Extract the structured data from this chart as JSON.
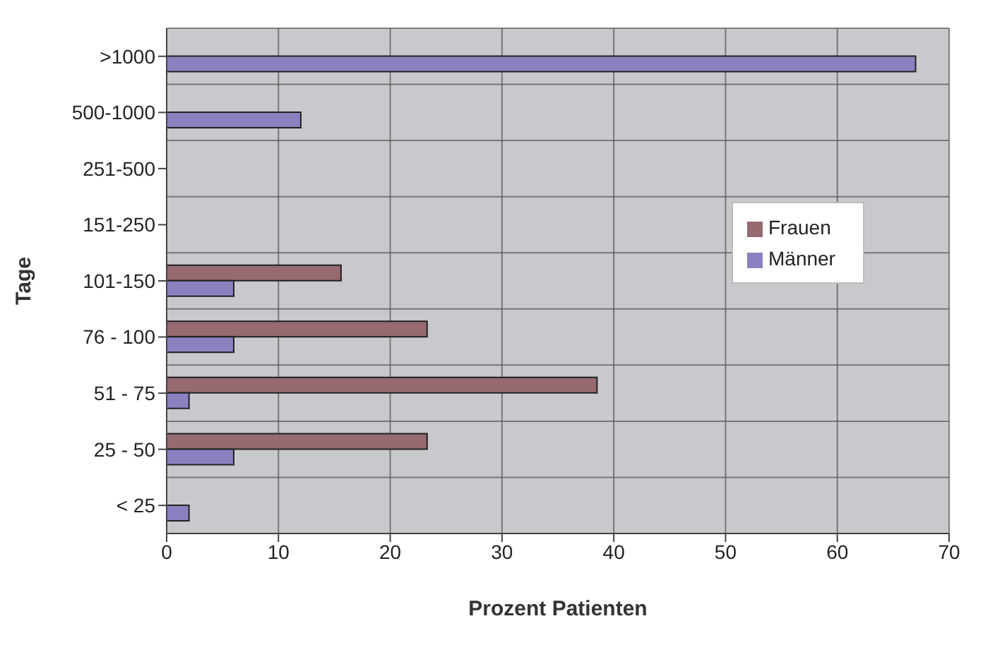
{
  "chart_data": {
    "type": "bar",
    "orientation": "horizontal",
    "xlabel": "Prozent Patienten",
    "ylabel": "Tage",
    "categories": [
      ">1000",
      "500-1000",
      "251-500",
      "151-250",
      "101-150",
      "76 - 100",
      "51 - 75",
      "25 - 50",
      "< 25"
    ],
    "series": [
      {
        "name": "Frauen",
        "color": "#956a70",
        "values": [
          null,
          null,
          null,
          null,
          15.6,
          23.3,
          38.5,
          23.3,
          null
        ]
      },
      {
        "name": "Männer",
        "color": "#8a82c0",
        "values": [
          67,
          12,
          null,
          null,
          6,
          6,
          2,
          6,
          2
        ]
      }
    ],
    "xlim": [
      0,
      70
    ],
    "xticks": [
      0,
      10,
      20,
      30,
      40,
      50,
      60,
      70
    ],
    "grid": true,
    "legend": "right"
  }
}
